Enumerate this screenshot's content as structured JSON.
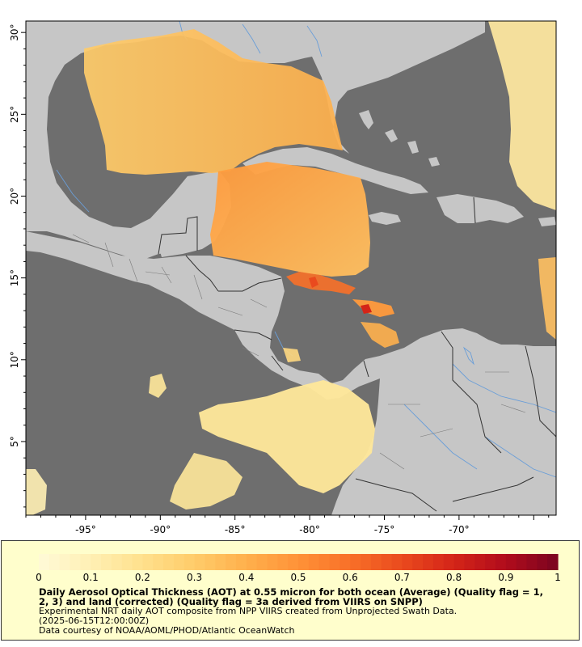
{
  "map": {
    "lon_range": [
      -99,
      -63.5
    ],
    "lat_range": [
      0.5,
      30.7
    ],
    "lon_ticks": [
      {
        "value": -95,
        "label": "-95°"
      },
      {
        "value": -90,
        "label": "-90°"
      },
      {
        "value": -85,
        "label": "-85°"
      },
      {
        "value": -80,
        "label": "-80°"
      },
      {
        "value": -75,
        "label": "-75°"
      },
      {
        "value": -70,
        "label": "-70°"
      }
    ],
    "lat_ticks": [
      {
        "value": 30,
        "label": "30°"
      },
      {
        "value": 25,
        "label": "25°"
      },
      {
        "value": 20,
        "label": "20°"
      },
      {
        "value": 15,
        "label": "15°"
      },
      {
        "value": 10,
        "label": "10°"
      },
      {
        "value": 5,
        "label": "5°"
      }
    ],
    "colors": {
      "no_data": "#6e6e6e",
      "land": "#c6c6c6",
      "border": "#333333",
      "river": "#6a9ed8"
    }
  },
  "legend": {
    "colorbar_ticks": [
      "0",
      "0.1",
      "0.2",
      "0.3",
      "0.4",
      "0.5",
      "0.6",
      "0.7",
      "0.8",
      "0.9",
      "1"
    ],
    "colorbar_colors": [
      "#fffad8",
      "#fff0b4",
      "#ffe08c",
      "#ffcc6a",
      "#ffb04c",
      "#ff9238",
      "#f87028",
      "#ea4a1e",
      "#d42418",
      "#b00c1c",
      "#7a0420"
    ],
    "title": "Daily Aerosol Optical Thickness (AOT) at 0.55 micron for both ocean (Average) (Quality flag = 1, 2, 3) and land (corrected) (Quality flag = 3a derived from VIIRS on SNPP)",
    "description": "Experimental NRT daily AOT composite from NPP VIIRS created from Unprojected Swath Data.",
    "timestamp": "(2025-06-15T12:00:00Z)",
    "credit": "Data courtesy of NOAA/AOML/PHOD/Atlantic OceanWatch"
  }
}
